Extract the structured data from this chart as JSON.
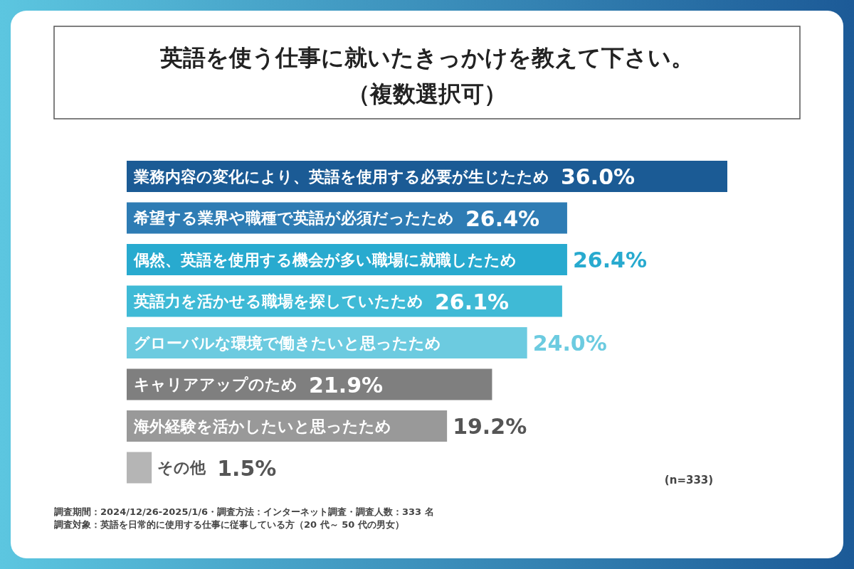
{
  "chart_data": {
    "type": "bar",
    "orientation": "horizontal",
    "title": "英語を使う仕事に就いたきっかけを教えて下さい。",
    "subtitle": "（複数選択可）",
    "categories": [
      "業務内容の変化により、英語を使用する必要が生じたため",
      "希望する業界や職種で英語が必須だったため",
      "偶然、英語を使用する機会が多い職場に就職したため",
      "英語力を活かせる職場を探していたため",
      "グローバルな環境で働きたいと思ったため",
      "キャリアアップのため",
      "海外経験を活かしたいと思ったため",
      "その他"
    ],
    "values": [
      36.0,
      26.4,
      26.4,
      26.1,
      24.0,
      21.9,
      19.2,
      1.5
    ],
    "value_labels": [
      "36.0%",
      "26.4%",
      "26.4%",
      "26.1%",
      "24.0%",
      "21.9%",
      "19.2%",
      "1.5%"
    ],
    "colors": [
      "#1b5b95",
      "#2e7cb4",
      "#28aacf",
      "#3fbad6",
      "#6ccbe0",
      "#7f7f7f",
      "#999999",
      "#b5b5b5"
    ],
    "annotations": [
      "(n=333)",
      "調査期間：2024/12/26-2025/1/6・調査方法：インターネット調査・調査人数：333 名",
      "調査対象：英語を日常的に使用する仕事に従事している方（20 代～ 50 代の男女）"
    ]
  }
}
